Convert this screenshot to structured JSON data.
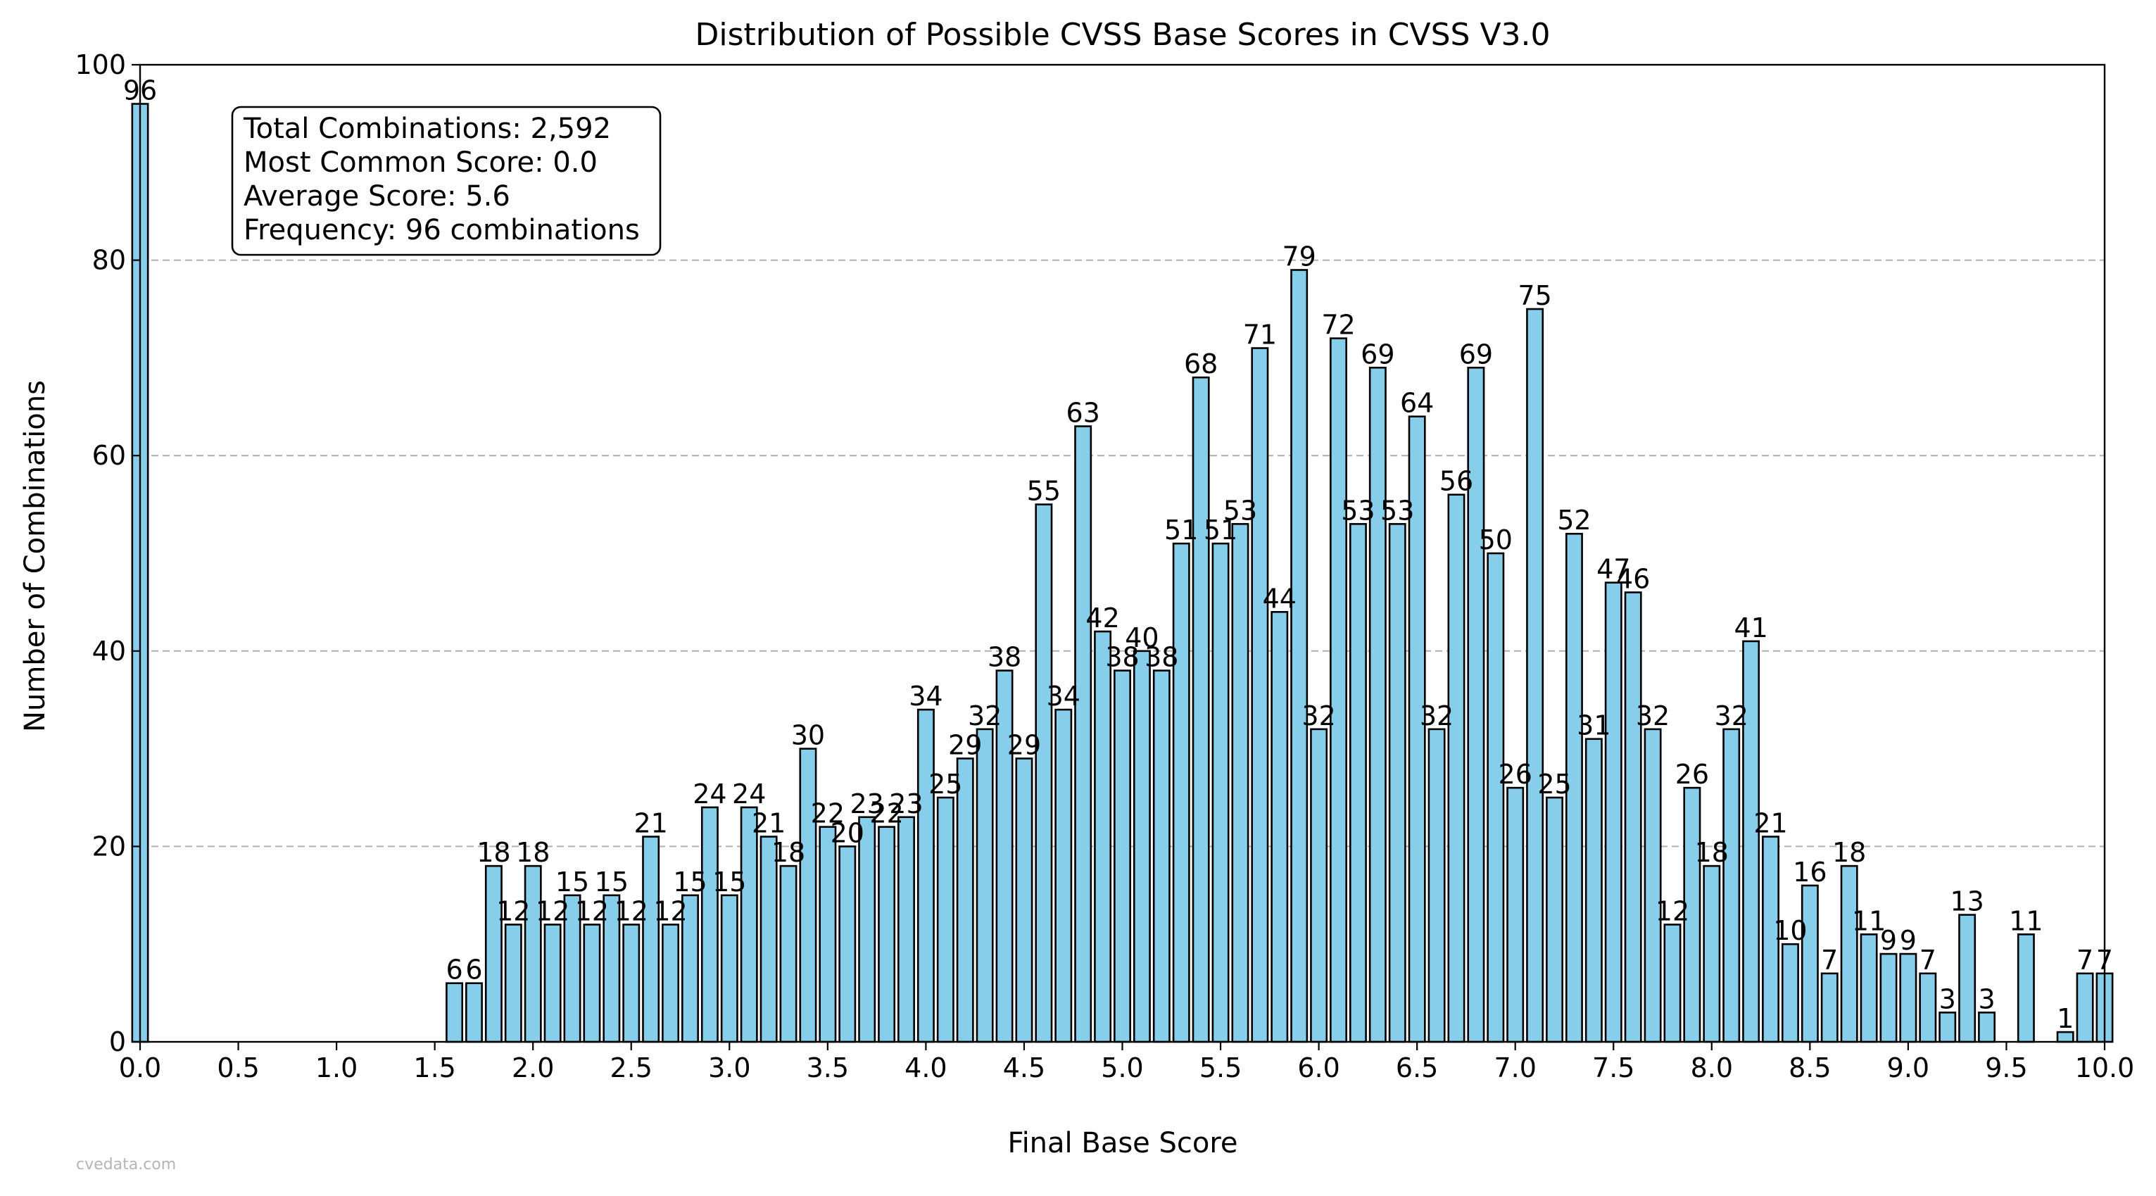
{
  "chart_data": {
    "type": "bar",
    "title": "Distribution of Possible CVSS Base Scores in CVSS V3.0",
    "xlabel": "Final Base Score",
    "ylabel": "Number of Combinations",
    "xlim": [
      0,
      10
    ],
    "ylim": [
      0,
      100
    ],
    "xticks": [
      "0.0",
      "0.5",
      "1.0",
      "1.5",
      "2.0",
      "2.5",
      "3.0",
      "3.5",
      "4.0",
      "4.5",
      "5.0",
      "5.5",
      "6.0",
      "6.5",
      "7.0",
      "7.5",
      "8.0",
      "8.5",
      "9.0",
      "9.5",
      "10.0"
    ],
    "yticks": [
      "0",
      "20",
      "40",
      "60",
      "80",
      "100"
    ],
    "grid": "y-dashed",
    "bar_color": "#87CEEB",
    "edge_color": "#000000",
    "bars": [
      {
        "x": 0.0,
        "value": 96
      },
      {
        "x": 1.6,
        "value": 6
      },
      {
        "x": 1.7,
        "value": 6
      },
      {
        "x": 1.8,
        "value": 18
      },
      {
        "x": 1.9,
        "value": 12
      },
      {
        "x": 2.0,
        "value": 18
      },
      {
        "x": 2.1,
        "value": 12
      },
      {
        "x": 2.2,
        "value": 15
      },
      {
        "x": 2.3,
        "value": 12
      },
      {
        "x": 2.4,
        "value": 15
      },
      {
        "x": 2.5,
        "value": 12
      },
      {
        "x": 2.6,
        "value": 21
      },
      {
        "x": 2.7,
        "value": 12
      },
      {
        "x": 2.8,
        "value": 15
      },
      {
        "x": 2.9,
        "value": 24
      },
      {
        "x": 3.0,
        "value": 15
      },
      {
        "x": 3.1,
        "value": 24
      },
      {
        "x": 3.2,
        "value": 21
      },
      {
        "x": 3.3,
        "value": 18
      },
      {
        "x": 3.4,
        "value": 30
      },
      {
        "x": 3.5,
        "value": 22
      },
      {
        "x": 3.6,
        "value": 20
      },
      {
        "x": 3.7,
        "value": 23
      },
      {
        "x": 3.8,
        "value": 22
      },
      {
        "x": 3.9,
        "value": 23
      },
      {
        "x": 4.0,
        "value": 34
      },
      {
        "x": 4.1,
        "value": 25
      },
      {
        "x": 4.2,
        "value": 29
      },
      {
        "x": 4.3,
        "value": 32
      },
      {
        "x": 4.4,
        "value": 38
      },
      {
        "x": 4.5,
        "value": 29
      },
      {
        "x": 4.6,
        "value": 55
      },
      {
        "x": 4.7,
        "value": 34
      },
      {
        "x": 4.8,
        "value": 63
      },
      {
        "x": 4.9,
        "value": 42
      },
      {
        "x": 5.0,
        "value": 38
      },
      {
        "x": 5.1,
        "value": 40
      },
      {
        "x": 5.2,
        "value": 38
      },
      {
        "x": 5.3,
        "value": 51
      },
      {
        "x": 5.4,
        "value": 68
      },
      {
        "x": 5.5,
        "value": 51
      },
      {
        "x": 5.6,
        "value": 53
      },
      {
        "x": 5.7,
        "value": 71
      },
      {
        "x": 5.8,
        "value": 44
      },
      {
        "x": 5.9,
        "value": 79
      },
      {
        "x": 6.0,
        "value": 32
      },
      {
        "x": 6.1,
        "value": 72
      },
      {
        "x": 6.2,
        "value": 53
      },
      {
        "x": 6.3,
        "value": 69
      },
      {
        "x": 6.4,
        "value": 53
      },
      {
        "x": 6.5,
        "value": 64
      },
      {
        "x": 6.6,
        "value": 32
      },
      {
        "x": 6.7,
        "value": 56
      },
      {
        "x": 6.8,
        "value": 69
      },
      {
        "x": 6.9,
        "value": 50
      },
      {
        "x": 7.0,
        "value": 26
      },
      {
        "x": 7.1,
        "value": 75
      },
      {
        "x": 7.2,
        "value": 25
      },
      {
        "x": 7.3,
        "value": 52
      },
      {
        "x": 7.4,
        "value": 31
      },
      {
        "x": 7.5,
        "value": 47
      },
      {
        "x": 7.6,
        "value": 46
      },
      {
        "x": 7.7,
        "value": 32
      },
      {
        "x": 7.8,
        "value": 12
      },
      {
        "x": 7.9,
        "value": 26
      },
      {
        "x": 8.0,
        "value": 18
      },
      {
        "x": 8.1,
        "value": 32
      },
      {
        "x": 8.2,
        "value": 41
      },
      {
        "x": 8.3,
        "value": 21
      },
      {
        "x": 8.4,
        "value": 10
      },
      {
        "x": 8.5,
        "value": 16
      },
      {
        "x": 8.6,
        "value": 7
      },
      {
        "x": 8.7,
        "value": 18
      },
      {
        "x": 8.8,
        "value": 11
      },
      {
        "x": 8.9,
        "value": 9
      },
      {
        "x": 9.0,
        "value": 9
      },
      {
        "x": 9.1,
        "value": 7
      },
      {
        "x": 9.2,
        "value": 3
      },
      {
        "x": 9.3,
        "value": 13
      },
      {
        "x": 9.4,
        "value": 3
      },
      {
        "x": 9.6,
        "value": 11
      },
      {
        "x": 9.8,
        "value": 1
      },
      {
        "x": 9.9,
        "value": 7
      },
      {
        "x": 10.0,
        "value": 7
      }
    ],
    "stats_box": {
      "lines": [
        "Total Combinations: 2,592",
        "Most Common Score: 0.0",
        "Average Score: 5.6",
        "Frequency: 96 combinations"
      ]
    },
    "watermark": "cvedata.com"
  }
}
